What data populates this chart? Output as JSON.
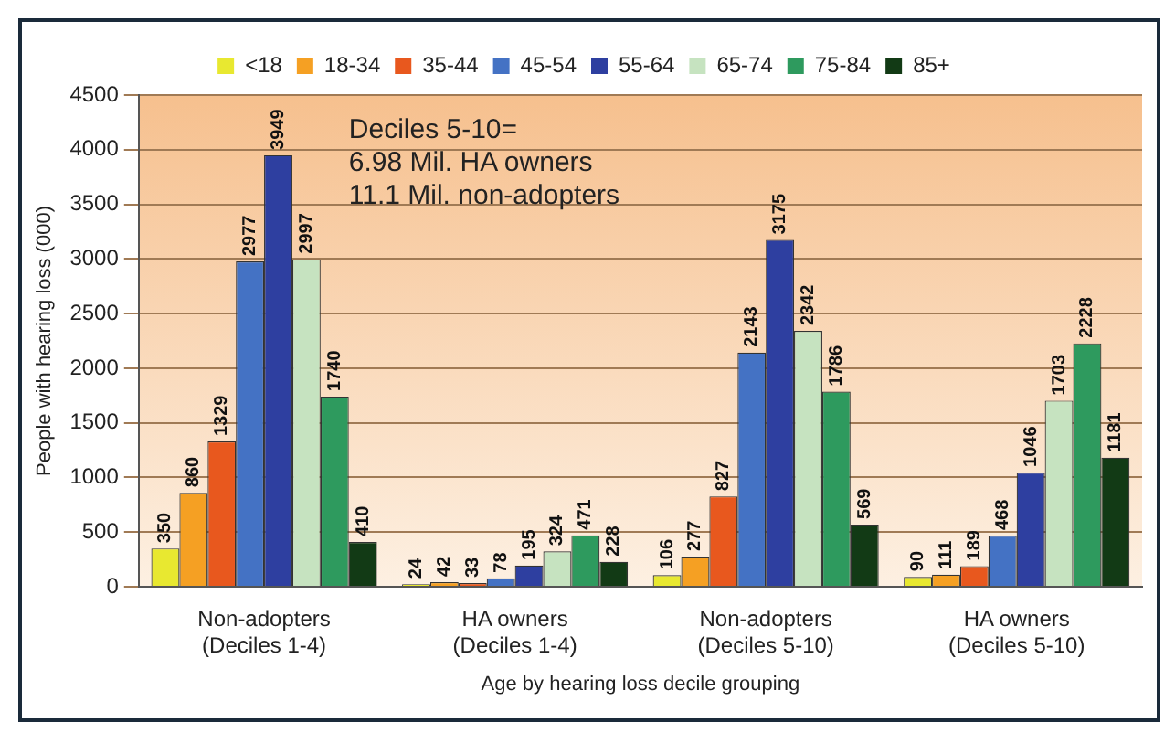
{
  "chart_data": {
    "type": "bar",
    "xlabel": "Age by hearing loss decile grouping",
    "ylabel": "People with hearing loss (000)",
    "categories": [
      "Non-adopters\n(Deciles 1-4)",
      "HA owners\n(Deciles 1-4)",
      "Non-adopters\n(Deciles 5-10)",
      "HA owners\n(Deciles 5-10)"
    ],
    "series": [
      {
        "name": "<18",
        "color": "#e8e830",
        "values": [
          350,
          24,
          106,
          90
        ]
      },
      {
        "name": "18-34",
        "color": "#f5a023",
        "values": [
          860,
          42,
          277,
          111
        ]
      },
      {
        "name": "35-44",
        "color": "#e8581e",
        "values": [
          1329,
          33,
          827,
          189
        ]
      },
      {
        "name": "45-54",
        "color": "#4472c4",
        "values": [
          2977,
          78,
          2143,
          468
        ]
      },
      {
        "name": "55-64",
        "color": "#2e3fa0",
        "values": [
          3949,
          195,
          3175,
          1046
        ]
      },
      {
        "name": "65-74",
        "color": "#c6e3c0",
        "values": [
          2997,
          324,
          2342,
          1703
        ]
      },
      {
        "name": "75-84",
        "color": "#2e9a5e",
        "values": [
          1740,
          471,
          1786,
          2228
        ]
      },
      {
        "name": "85+",
        "color": "#123a15",
        "values": [
          410,
          228,
          569,
          1181
        ]
      }
    ],
    "ylim": [
      0,
      4500
    ],
    "yticks": [
      0,
      500,
      1000,
      1500,
      2000,
      2500,
      3000,
      3500,
      4000,
      4500
    ],
    "grid": "y",
    "legend": "top",
    "data_labels": true,
    "annotations": [
      "Deciles 5-10=\n6.98 Mil. HA owners\n11.1 Mil. non-adopters"
    ]
  }
}
